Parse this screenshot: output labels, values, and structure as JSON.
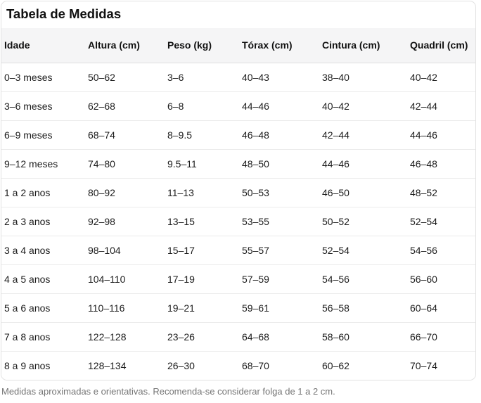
{
  "card": {
    "title": "Tabela de Medidas"
  },
  "table": {
    "columns": [
      "Idade",
      "Altura (cm)",
      "Peso (kg)",
      "Tórax (cm)",
      "Cintura (cm)",
      "Quadril (cm)"
    ],
    "rows": [
      [
        "0–3 meses",
        "50–62",
        "3–6",
        "40–43",
        "38–40",
        "40–42"
      ],
      [
        "3–6 meses",
        "62–68",
        "6–8",
        "44–46",
        "40–42",
        "42–44"
      ],
      [
        "6–9 meses",
        "68–74",
        "8–9.5",
        "46–48",
        "42–44",
        "44–46"
      ],
      [
        "9–12 meses",
        "74–80",
        "9.5–11",
        "48–50",
        "44–46",
        "46–48"
      ],
      [
        "1 a 2 anos",
        "80–92",
        "11–13",
        "50–53",
        "46–50",
        "48–52"
      ],
      [
        "2 a 3 anos",
        "92–98",
        "13–15",
        "53–55",
        "50–52",
        "52–54"
      ],
      [
        "3 a 4 anos",
        "98–104",
        "15–17",
        "55–57",
        "52–54",
        "54–56"
      ],
      [
        "4 a 5 anos",
        "104–110",
        "17–19",
        "57–59",
        "54–56",
        "56–60"
      ],
      [
        "5 a 6 anos",
        "110–116",
        "19–21",
        "59–61",
        "56–58",
        "60–64"
      ],
      [
        "7 a 8 anos",
        "122–128",
        "23–26",
        "64–68",
        "58–60",
        "66–70"
      ],
      [
        "8 a 9 anos",
        "128–134",
        "26–30",
        "68–70",
        "60–62",
        "70–74"
      ]
    ]
  },
  "footer": {
    "note": "Medidas aproximadas e orientativas. Recomenda-se considerar folga de 1 a 2 cm."
  },
  "colors": {
    "header_bg": "#f5f5f6",
    "card_border": "#e2e2e2",
    "row_divider": "#ebebeb",
    "text": "#141414",
    "muted_text": "#757575"
  }
}
